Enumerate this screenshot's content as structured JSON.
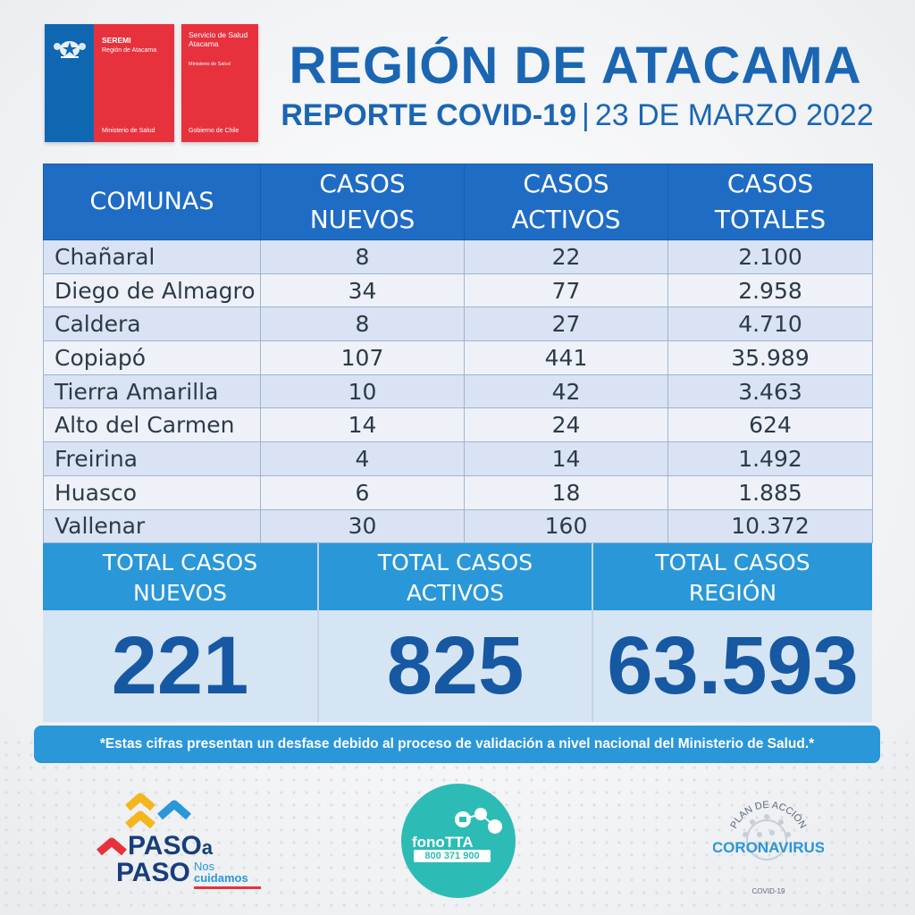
{
  "header": {
    "logo_seremi": {
      "line1": "SEREMI",
      "line2": "Región de Atacama",
      "line3": "Ministerio de Salud"
    },
    "logo_servicio": {
      "line1": "Servicio de Salud Atacama",
      "line2": "Ministerio de Salud",
      "line3": "Gobierno de Chile"
    },
    "title": "REGIÓN DE ATACAMA",
    "subtitle_bold": "REPORTE COVID-19",
    "subtitle_sep": "|",
    "subtitle_date": "23 DE MARZO 2022"
  },
  "table": {
    "headers": {
      "comunas": "COMUNAS",
      "nuevos_1": "CASOS",
      "nuevos_2": "NUEVOS",
      "activos_1": "CASOS",
      "activos_2": "ACTIVOS",
      "totales_1": "CASOS",
      "totales_2": "TOTALES"
    },
    "rows": [
      {
        "comuna": "Chañaral",
        "nuevos": "8",
        "activos": "22",
        "totales": "2.100"
      },
      {
        "comuna": "Diego de Almagro",
        "nuevos": "34",
        "activos": "77",
        "totales": "2.958"
      },
      {
        "comuna": "Caldera",
        "nuevos": "8",
        "activos": "27",
        "totales": "4.710"
      },
      {
        "comuna": "Copiapó",
        "nuevos": "107",
        "activos": "441",
        "totales": "35.989"
      },
      {
        "comuna": "Tierra Amarilla",
        "nuevos": "10",
        "activos": "42",
        "totales": "3.463"
      },
      {
        "comuna": "Alto del Carmen",
        "nuevos": "14",
        "activos": "24",
        "totales": "624"
      },
      {
        "comuna": "Freirina",
        "nuevos": "4",
        "activos": "14",
        "totales": "1.492"
      },
      {
        "comuna": "Huasco",
        "nuevos": "6",
        "activos": "18",
        "totales": "1.885"
      },
      {
        "comuna": "Vallenar",
        "nuevos": "30",
        "activos": "160",
        "totales": "10.372"
      }
    ]
  },
  "totals": {
    "nuevos": {
      "label1": "TOTAL CASOS",
      "label2": "NUEVOS",
      "value": "221"
    },
    "activos": {
      "label1": "TOTAL CASOS",
      "label2": "ACTIVOS",
      "value": "825"
    },
    "region": {
      "label1": "TOTAL CASOS",
      "label2": "REGIÓN",
      "value": "63.593"
    }
  },
  "note": "*Estas cifras presentan un desfase debido al proceso de validación a nivel nacional del Ministerio de Salud.*",
  "footer": {
    "paso": {
      "word1": "PASO",
      "word1_suffix": "a",
      "word2": "PASO",
      "nos": "Nos",
      "cuidamos": "cuidamos"
    },
    "fono": {
      "name": "fonoTTA",
      "number": "800 371 900"
    },
    "corona": {
      "top": "PLAN DE ACCIÓN",
      "main": "CORONAVIRUS",
      "bottom": "COVID-19"
    }
  },
  "colors": {
    "title_blue": "#1a66b3",
    "header_blue": "#1f6cc5",
    "light_blue": "#2a97d9",
    "value_blue": "#1758a3",
    "logo_red": "#e7323e",
    "fono_teal": "#2cbcb5"
  }
}
